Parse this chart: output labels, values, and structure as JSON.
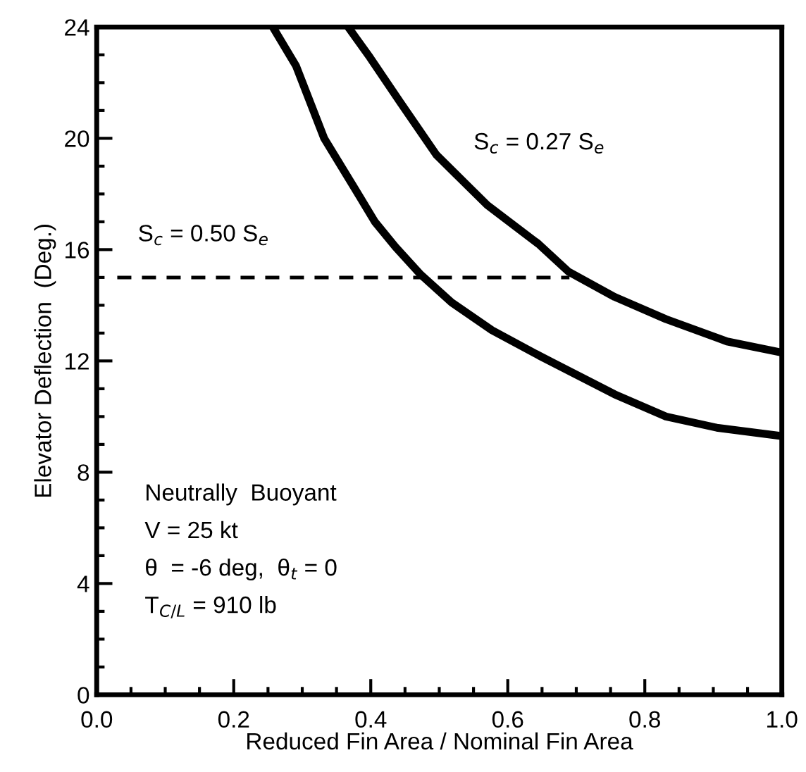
{
  "chart_data": {
    "type": "line",
    "xlabel": "Reduced Fin Area / Nominal Fin Area",
    "ylabel": "Elevator Deflection  (Deg.)",
    "xlim": [
      0,
      1
    ],
    "ylim": [
      0,
      24
    ],
    "xticks": [
      {
        "value": 0,
        "label": "0.0"
      },
      {
        "value": 0.05,
        "label": null
      },
      {
        "value": 0.1,
        "label": null
      },
      {
        "value": 0.15,
        "label": null
      },
      {
        "value": 0.2,
        "label": "0.2"
      },
      {
        "value": 0.25,
        "label": null
      },
      {
        "value": 0.3,
        "label": null
      },
      {
        "value": 0.35,
        "label": null
      },
      {
        "value": 0.4,
        "label": "0.4"
      },
      {
        "value": 0.45,
        "label": null
      },
      {
        "value": 0.5,
        "label": null
      },
      {
        "value": 0.55,
        "label": null
      },
      {
        "value": 0.6,
        "label": "0.6"
      },
      {
        "value": 0.65,
        "label": null
      },
      {
        "value": 0.7,
        "label": null
      },
      {
        "value": 0.75,
        "label": null
      },
      {
        "value": 0.8,
        "label": "0.8"
      },
      {
        "value": 0.85,
        "label": null
      },
      {
        "value": 0.9,
        "label": null
      },
      {
        "value": 0.95,
        "label": null
      },
      {
        "value": 1,
        "label": "1.0"
      }
    ],
    "yticks": [
      0,
      {
        "value": 1,
        "label": null
      },
      {
        "value": 2,
        "label": null
      },
      {
        "value": 3,
        "label": null
      },
      4,
      {
        "value": 5,
        "label": null
      },
      {
        "value": 6,
        "label": null
      },
      {
        "value": 7,
        "label": null
      },
      8,
      {
        "value": 9,
        "label": null
      },
      {
        "value": 10,
        "label": null
      },
      {
        "value": 11,
        "label": null
      },
      12,
      {
        "value": 13,
        "label": null
      },
      {
        "value": 14,
        "label": null
      },
      {
        "value": 15,
        "label": null
      },
      16,
      {
        "value": 17,
        "label": null
      },
      {
        "value": 18,
        "label": null
      },
      {
        "value": 19,
        "label": null
      },
      20,
      {
        "value": 21,
        "label": null
      },
      {
        "value": 22,
        "label": null
      },
      {
        "value": 23,
        "label": null
      },
      24
    ],
    "grid": false,
    "legend": false,
    "marker": "none",
    "series": [
      {
        "color": "#000000",
        "line_style": "solid",
        "x": [
          0.257,
          0.291,
          0.332,
          0.384,
          0.406,
          0.436,
          0.473,
          0.518,
          0.577,
          0.645,
          0.756,
          0.831,
          0.905,
          1.0
        ],
        "values": [
          24,
          22.6,
          20.0,
          17.9,
          17.0,
          16.1,
          15.1,
          14.1,
          13.1,
          12.2,
          10.8,
          10.0,
          9.6,
          9.3
        ]
      },
      {
        "color": "#000000",
        "line_style": "solid",
        "x": [
          0.367,
          0.399,
          0.443,
          0.496,
          0.57,
          0.645,
          0.689,
          0.756,
          0.831,
          0.92,
          1.0
        ],
        "values": [
          24,
          22.9,
          21.3,
          19.4,
          17.6,
          16.2,
          15.2,
          14.3,
          13.5,
          12.7,
          12.3
        ]
      },
      {
        "color": "#000000",
        "line_style": "dashed",
        "x": [
          0.03,
          0.69
        ],
        "values": [
          15,
          15
        ]
      }
    ],
    "annotations": [
      "S$_{c}$ = 0.50 S$_{e}$",
      "S$_{c}$ = 0.27 S$_{e}$",
      "Neutrally  Buoyant",
      "V = 25 kt",
      "θ  = -6 deg,  θ$_{t}$ = 0",
      "T$_{C/L}$ = 910 lb"
    ]
  }
}
